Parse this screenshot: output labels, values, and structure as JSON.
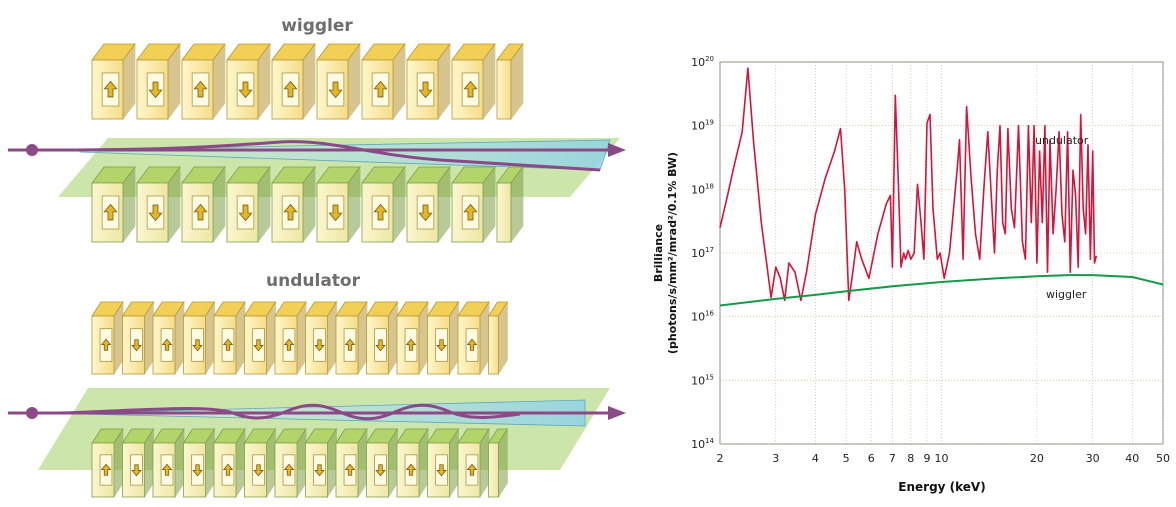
{
  "diagrams": {
    "wiggler_title": "wiggler",
    "undulator_title": "undulator",
    "wiggler_top_arrows": [
      "up",
      "down",
      "up",
      "down",
      "up",
      "down",
      "up",
      "down",
      "up"
    ],
    "wiggler_bottom_arrows": [
      "up",
      "down",
      "up",
      "down",
      "up",
      "down",
      "up",
      "down",
      "up"
    ],
    "undulator_top_arrows": [
      "up",
      "down",
      "up",
      "down",
      "up",
      "down",
      "up",
      "down",
      "up",
      "down",
      "up",
      "down",
      "up"
    ],
    "undulator_bottom_arrows": [
      "up",
      "down",
      "up",
      "down",
      "up",
      "down",
      "up",
      "down",
      "up",
      "down",
      "up",
      "down",
      "up"
    ],
    "colors": {
      "yellow_magnet": "#f2cf55",
      "green_magnet": "#b2d46a",
      "beam": "#8a4a86",
      "plane": "#b9dc8f",
      "cone": "#9fd6e6"
    }
  },
  "chart_data": {
    "type": "line",
    "x_scale": "log",
    "y_scale": "log",
    "xlabel": "Energy (keV)",
    "ylabel": "Brilliance\n(photons/s/mm²/mrad²/0.1% BW)",
    "xlim": [
      2,
      50
    ],
    "ylim": [
      100000000000000.0,
      1e+20
    ],
    "x_ticks": [
      "2",
      "3",
      "4",
      "5",
      "6",
      "7",
      "8",
      "9",
      "10",
      "20",
      "30",
      "40",
      "50"
    ],
    "y_ticks": [
      {
        "base": "10",
        "exp": "14"
      },
      {
        "base": "10",
        "exp": "15"
      },
      {
        "base": "10",
        "exp": "16"
      },
      {
        "base": "10",
        "exp": "17"
      },
      {
        "base": "10",
        "exp": "18"
      },
      {
        "base": "10",
        "exp": "19"
      },
      {
        "base": "10",
        "exp": "20"
      }
    ],
    "grid": true,
    "series": [
      {
        "name": "undulator",
        "color": "#d4143a",
        "x": [
          2.0,
          2.1,
          2.2,
          2.35,
          2.45,
          2.55,
          2.7,
          2.9,
          3.0,
          3.1,
          3.2,
          3.3,
          3.45,
          3.6,
          3.75,
          4.0,
          4.3,
          4.6,
          4.8,
          4.95,
          5.1,
          5.25,
          5.4,
          5.6,
          5.9,
          6.3,
          6.7,
          6.9,
          7.0,
          7.15,
          7.3,
          7.45,
          7.6,
          7.7,
          7.85,
          8.0,
          8.2,
          8.4,
          8.6,
          8.8,
          9.0,
          9.2,
          9.4,
          9.7,
          9.9,
          10.2,
          10.6,
          11.2,
          11.4,
          11.7,
          12.0,
          12.4,
          12.8,
          13.2,
          13.6,
          14.0,
          14.4,
          14.7,
          15.0,
          15.3,
          15.6,
          15.9,
          16.2,
          16.6,
          17.0,
          17.5,
          18.0,
          18.4,
          18.8,
          19.2,
          19.6,
          20.0,
          20.4,
          20.8,
          21.2,
          21.6,
          22.0,
          22.5,
          23.0,
          23.5,
          24.0,
          24.5,
          25.0,
          25.5,
          26.0,
          26.5,
          27.0,
          27.5,
          28.0,
          28.5,
          29.0,
          29.5,
          30.0,
          30.4,
          30.8
        ],
        "y": [
          2.5e+17,
          7e+17,
          2e+18,
          8e+18,
          8e+19,
          6e+18,
          3e+17,
          2e+16,
          6e+16,
          4e+16,
          1.8e+16,
          7e+16,
          5e+16,
          1.8e+16,
          5e+16,
          4e+17,
          1.5e+18,
          4e+18,
          9e+18,
          1e+18,
          1.8e+16,
          5e+16,
          1.5e+17,
          8e+16,
          4e+16,
          2e+17,
          6e+17,
          8e+17,
          6e+16,
          3e+19,
          1.5e+18,
          6e+16,
          1e+17,
          8e+16,
          1.1e+17,
          8e+16,
          1e+17,
          1.2e+18,
          3.5e+17,
          8e+16,
          1.1e+19,
          1.5e+19,
          5e+17,
          8e+16,
          1e+17,
          4e+16,
          1e+17,
          2e+18,
          6e+18,
          8e+16,
          2e+19,
          1.5e+18,
          2e+17,
          8e+16,
          1e+18,
          8e+18,
          6e+17,
          1e+17,
          2e+18,
          1e+19,
          3e+17,
          2e+17,
          9e+18,
          5e+17,
          2.5e+17,
          1e+19,
          1.5e+17,
          8e+16,
          1e+19,
          3e+17,
          1e+19,
          7e+16,
          4e+18,
          3e+17,
          1e+19,
          5e+16,
          6e+18,
          2e+17,
          1e+18,
          8e+18,
          4e+17,
          1.5e+17,
          8e+18,
          5e+16,
          2e+18,
          8e+17,
          6e+16,
          1.5e+19,
          5e+17,
          2e+17,
          5e+18,
          8e+16,
          4e+18,
          7e+16,
          9e+16
        ]
      },
      {
        "name": "wiggler",
        "color": "#159a4a",
        "x": [
          2,
          3,
          4,
          5,
          7,
          10,
          15,
          20,
          25,
          30,
          40,
          50
        ],
        "y": [
          1.5e+16,
          1.9e+16,
          2.2e+16,
          2.5e+16,
          3e+16,
          3.5e+16,
          4e+16,
          4.3e+16,
          4.5e+16,
          4.5e+16,
          4.2e+16,
          3.2e+16
        ]
      }
    ]
  }
}
